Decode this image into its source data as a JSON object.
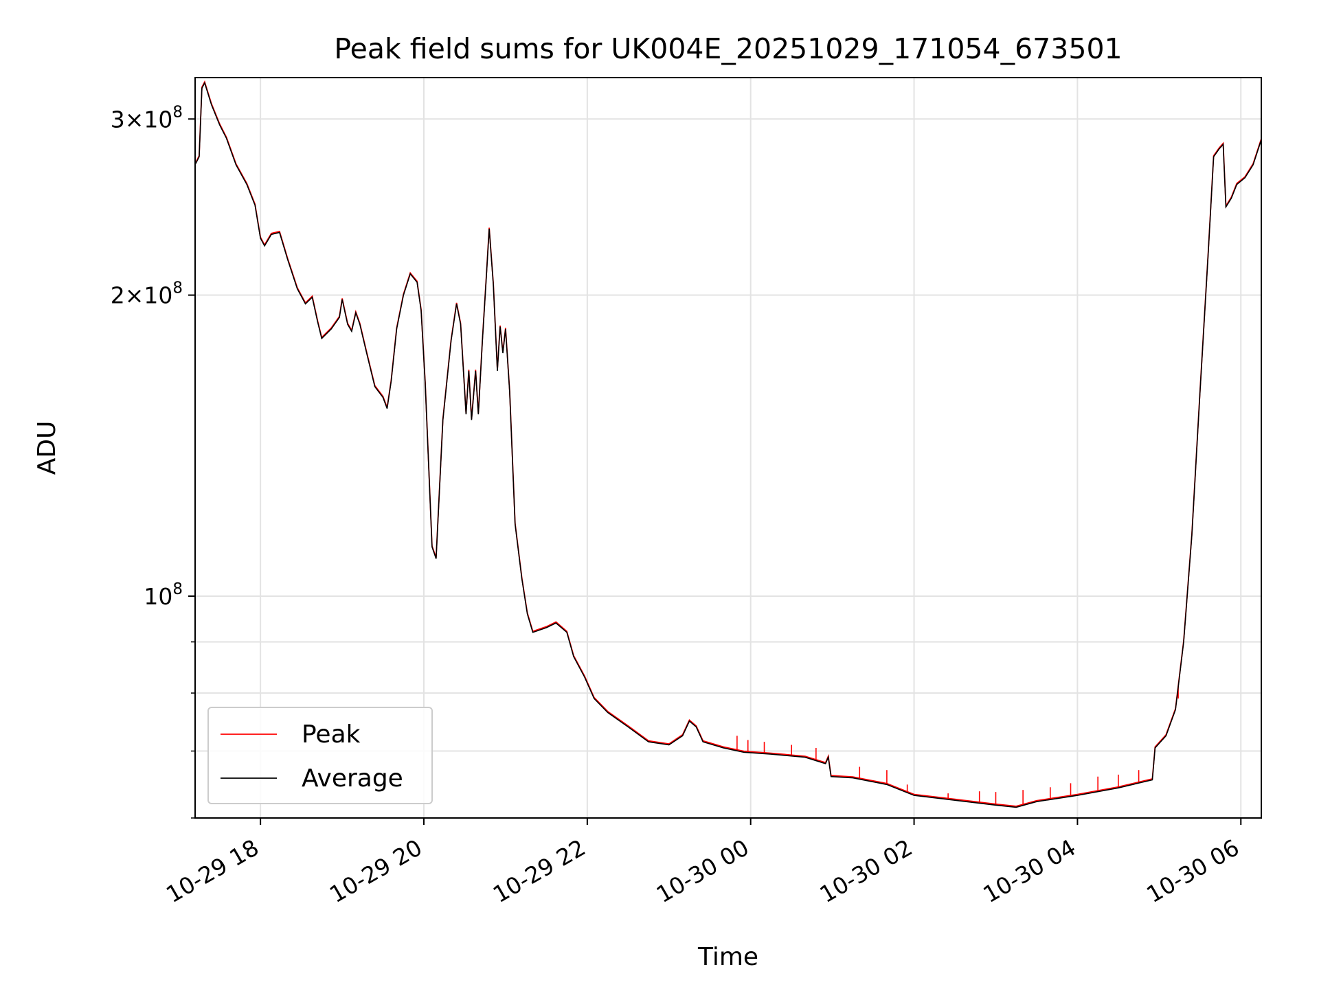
{
  "chart_data": {
    "type": "line",
    "title": "Peak field sums for UK004E_20251029_171054_673501",
    "xlabel": "Time",
    "ylabel": "ADU",
    "y_scale": "log",
    "grid": true,
    "legend_position": "lower-left",
    "xlim": [
      "2025-10-29 17:12",
      "2025-10-30 06:15"
    ],
    "ylim": [
      60000000,
      330000000
    ],
    "x_ticks": [
      {
        "t": "2025-10-29 18:00",
        "label": "10-29 18"
      },
      {
        "t": "2025-10-29 20:00",
        "label": "10-29 20"
      },
      {
        "t": "2025-10-29 22:00",
        "label": "10-29 22"
      },
      {
        "t": "2025-10-30 00:00",
        "label": "10-30 00"
      },
      {
        "t": "2025-10-30 02:00",
        "label": "10-30 02"
      },
      {
        "t": "2025-10-30 04:00",
        "label": "10-30 04"
      },
      {
        "t": "2025-10-30 06:00",
        "label": "10-30 06"
      }
    ],
    "y_major_ticks": [
      {
        "value": 100000000,
        "mantissa": "",
        "exp": "8"
      },
      {
        "value": 200000000,
        "mantissa": "2",
        "exp": "8"
      },
      {
        "value": 300000000,
        "mantissa": "3",
        "exp": "8"
      }
    ],
    "y_minor_ticks": [
      60000000,
      70000000,
      80000000,
      90000000
    ],
    "colors": {
      "Peak": "#ff0000",
      "Average": "#000000"
    },
    "series": [
      {
        "name": "Average",
        "color": "#000000",
        "points": [
          [
            "2025-10-29 17:12",
            270000000
          ],
          [
            "2025-10-29 17:15",
            275000000
          ],
          [
            "2025-10-29 17:17",
            322000000
          ],
          [
            "2025-10-29 17:19",
            326000000
          ],
          [
            "2025-10-29 17:24",
            310000000
          ],
          [
            "2025-10-29 17:30",
            296000000
          ],
          [
            "2025-10-29 17:35",
            287000000
          ],
          [
            "2025-10-29 17:42",
            270000000
          ],
          [
            "2025-10-29 17:50",
            258000000
          ],
          [
            "2025-10-29 17:56",
            246000000
          ],
          [
            "2025-10-29 18:00",
            228000000
          ],
          [
            "2025-10-29 18:03",
            224000000
          ],
          [
            "2025-10-29 18:08",
            230000000
          ],
          [
            "2025-10-29 18:14",
            231000000
          ],
          [
            "2025-10-29 18:20",
            217000000
          ],
          [
            "2025-10-29 18:27",
            203000000
          ],
          [
            "2025-10-29 18:33",
            196000000
          ],
          [
            "2025-10-29 18:38",
            199000000
          ],
          [
            "2025-10-29 18:42",
            188000000
          ],
          [
            "2025-10-29 18:45",
            181000000
          ],
          [
            "2025-10-29 18:52",
            185000000
          ],
          [
            "2025-10-29 18:58",
            190000000
          ],
          [
            "2025-10-29 19:00",
            198000000
          ],
          [
            "2025-10-29 19:04",
            187000000
          ],
          [
            "2025-10-29 19:07",
            184000000
          ],
          [
            "2025-10-29 19:10",
            192000000
          ],
          [
            "2025-10-29 19:13",
            187000000
          ],
          [
            "2025-10-29 19:18",
            175000000
          ],
          [
            "2025-10-29 19:24",
            162000000
          ],
          [
            "2025-10-29 19:30",
            158000000
          ],
          [
            "2025-10-29 19:33",
            154000000
          ],
          [
            "2025-10-29 19:36",
            164000000
          ],
          [
            "2025-10-29 19:40",
            185000000
          ],
          [
            "2025-10-29 19:45",
            200000000
          ],
          [
            "2025-10-29 19:50",
            210000000
          ],
          [
            "2025-10-29 19:55",
            206000000
          ],
          [
            "2025-10-29 19:58",
            193000000
          ],
          [
            "2025-10-29 20:01",
            163000000
          ],
          [
            "2025-10-29 20:06",
            112000000
          ],
          [
            "2025-10-29 20:09",
            109000000
          ],
          [
            "2025-10-29 20:14",
            150000000
          ],
          [
            "2025-10-29 20:20",
            180000000
          ],
          [
            "2025-10-29 20:24",
            196000000
          ],
          [
            "2025-10-29 20:27",
            187000000
          ],
          [
            "2025-10-29 20:31",
            152000000
          ],
          [
            "2025-10-29 20:33",
            168000000
          ],
          [
            "2025-10-29 20:35",
            150000000
          ],
          [
            "2025-10-29 20:38",
            168000000
          ],
          [
            "2025-10-29 20:40",
            152000000
          ],
          [
            "2025-10-29 20:43",
            180000000
          ],
          [
            "2025-10-29 20:46",
            210000000
          ],
          [
            "2025-10-29 20:48",
            233000000
          ],
          [
            "2025-10-29 20:51",
            205000000
          ],
          [
            "2025-10-29 20:54",
            168000000
          ],
          [
            "2025-10-29 20:56",
            186000000
          ],
          [
            "2025-10-29 20:58",
            175000000
          ],
          [
            "2025-10-29 21:00",
            185000000
          ],
          [
            "2025-10-29 21:03",
            160000000
          ],
          [
            "2025-10-29 21:07",
            118000000
          ],
          [
            "2025-10-29 21:12",
            104000000
          ],
          [
            "2025-10-29 21:16",
            96000000
          ],
          [
            "2025-10-29 21:20",
            92000000
          ],
          [
            "2025-10-29 21:30",
            93000000
          ],
          [
            "2025-10-29 21:37",
            94000000
          ],
          [
            "2025-10-29 21:45",
            92000000
          ],
          [
            "2025-10-29 21:50",
            87000000
          ],
          [
            "2025-10-29 21:58",
            83000000
          ],
          [
            "2025-10-29 22:05",
            79000000
          ],
          [
            "2025-10-29 22:15",
            76500000
          ],
          [
            "2025-10-29 22:30",
            74000000
          ],
          [
            "2025-10-29 22:45",
            71500000
          ],
          [
            "2025-10-29 23:00",
            71000000
          ],
          [
            "2025-10-29 23:10",
            72500000
          ],
          [
            "2025-10-29 23:15",
            75000000
          ],
          [
            "2025-10-29 23:20",
            74000000
          ],
          [
            "2025-10-29 23:25",
            71500000
          ],
          [
            "2025-10-29 23:40",
            70500000
          ],
          [
            "2025-10-29 23:55",
            69800000
          ],
          [
            "2025-10-30 00:15",
            69500000
          ],
          [
            "2025-10-30 00:40",
            69000000
          ],
          [
            "2025-10-30 00:55",
            68000000
          ],
          [
            "2025-10-30 00:57",
            69000000
          ],
          [
            "2025-10-30 00:59",
            66000000
          ],
          [
            "2025-10-30 01:15",
            65800000
          ],
          [
            "2025-10-30 01:40",
            64800000
          ],
          [
            "2025-10-30 02:00",
            63200000
          ],
          [
            "2025-10-30 02:30",
            62500000
          ],
          [
            "2025-10-30 03:00",
            61800000
          ],
          [
            "2025-10-30 03:15",
            61500000
          ],
          [
            "2025-10-30 03:30",
            62300000
          ],
          [
            "2025-10-30 04:00",
            63200000
          ],
          [
            "2025-10-30 04:30",
            64300000
          ],
          [
            "2025-10-30 04:55",
            65500000
          ],
          [
            "2025-10-30 04:57",
            70500000
          ],
          [
            "2025-10-30 05:05",
            72500000
          ],
          [
            "2025-10-30 05:12",
            77000000
          ],
          [
            "2025-10-30 05:18",
            90000000
          ],
          [
            "2025-10-30 05:24",
            115000000
          ],
          [
            "2025-10-30 05:30",
            160000000
          ],
          [
            "2025-10-30 05:36",
            220000000
          ],
          [
            "2025-10-30 05:40",
            275000000
          ],
          [
            "2025-10-30 05:44",
            280000000
          ],
          [
            "2025-10-30 05:47",
            283000000
          ],
          [
            "2025-10-30 05:49",
            245000000
          ],
          [
            "2025-10-30 05:53",
            250000000
          ],
          [
            "2025-10-30 05:57",
            258000000
          ],
          [
            "2025-10-30 06:03",
            262000000
          ],
          [
            "2025-10-30 06:09",
            270000000
          ],
          [
            "2025-10-30 06:15",
            286000000
          ]
        ]
      },
      {
        "name": "Peak",
        "color": "#ff0000",
        "follows": "Average",
        "spikes": [
          [
            "2025-10-29 23:50",
            72500000
          ],
          [
            "2025-10-29 23:58",
            71800000
          ],
          [
            "2025-10-30 00:10",
            71500000
          ],
          [
            "2025-10-30 00:30",
            71000000
          ],
          [
            "2025-10-30 00:48",
            70500000
          ],
          [
            "2025-10-30 01:20",
            67500000
          ],
          [
            "2025-10-30 01:40",
            67000000
          ],
          [
            "2025-10-30 01:55",
            64800000
          ],
          [
            "2025-10-30 02:25",
            63500000
          ],
          [
            "2025-10-30 02:48",
            63800000
          ],
          [
            "2025-10-30 03:00",
            63700000
          ],
          [
            "2025-10-30 03:20",
            64000000
          ],
          [
            "2025-10-30 03:40",
            64400000
          ],
          [
            "2025-10-30 03:55",
            65000000
          ],
          [
            "2025-10-30 04:15",
            66000000
          ],
          [
            "2025-10-30 04:30",
            66300000
          ],
          [
            "2025-10-30 04:45",
            67000000
          ],
          [
            "2025-10-30 05:08",
            74500000
          ],
          [
            "2025-10-30 05:14",
            79000000
          ]
        ]
      }
    ]
  }
}
